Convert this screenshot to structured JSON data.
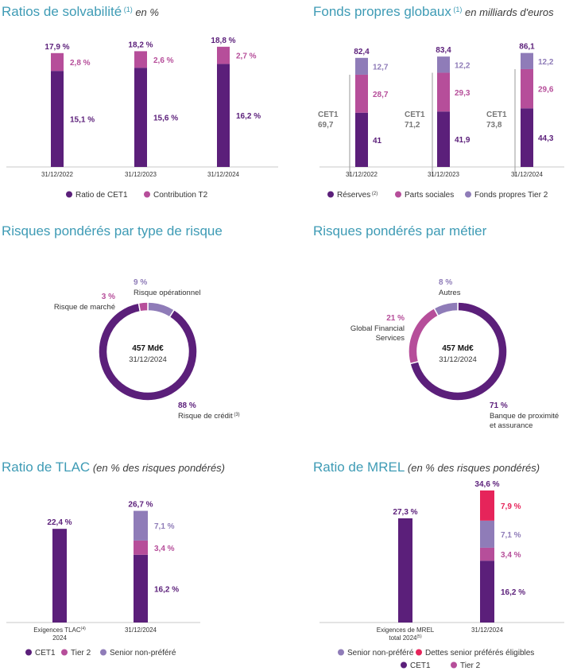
{
  "colors": {
    "dark": "#5b1f7a",
    "magenta": "#b64e9a",
    "lavender": "#8f7cb8",
    "red": "#e6245a",
    "title": "#3e9bb5"
  },
  "chart_data": [
    {
      "id": "solvency",
      "type": "bar",
      "title": "Ratios de solvabilité",
      "title_note": "(1)",
      "subtitle": "en %",
      "categories": [
        "31/12/2022",
        "31/12/2023",
        "31/12/2024"
      ],
      "series": [
        {
          "name": "Ratio de CET1",
          "values": [
            15.1,
            15.6,
            16.2
          ],
          "labels": [
            "15,1 %",
            "15,6 %",
            "16,2 %"
          ]
        },
        {
          "name": "Contribution T2",
          "values": [
            2.8,
            2.6,
            2.7
          ],
          "labels": [
            "2,8 %",
            "2,6 %",
            "2,7 %"
          ]
        }
      ],
      "totals": [
        "17,9 %",
        "18,2 %",
        "18,8 %"
      ]
    },
    {
      "id": "own_funds",
      "type": "bar",
      "title": "Fonds propres globaux",
      "title_note": "(1)",
      "subtitle": "en milliards d'euros",
      "categories": [
        "31/12/2022",
        "31/12/2023",
        "31/12/2024"
      ],
      "series": [
        {
          "name": "Réserves",
          "note": "(2)",
          "values": [
            41,
            41.9,
            44.3
          ],
          "labels": [
            "41",
            "41,9",
            "44,3"
          ]
        },
        {
          "name": "Parts sociales",
          "values": [
            28.7,
            29.3,
            29.6
          ],
          "labels": [
            "28,7",
            "29,3",
            "29,6"
          ]
        },
        {
          "name": "Fonds propres Tier 2",
          "values": [
            12.7,
            12.2,
            12.2
          ],
          "labels": [
            "12,7",
            "12,2",
            "12,2"
          ]
        }
      ],
      "totals": [
        "82,4",
        "83,4",
        "86,1"
      ],
      "cet1_label": "CET1",
      "cet1_values": [
        "69,7",
        "71,2",
        "73,8"
      ]
    },
    {
      "id": "rwa_risk",
      "type": "pie",
      "title": "Risques pondérés par type de risque",
      "center_value": "457 Md€",
      "center_date": "31/12/2024",
      "slices": [
        {
          "name": "Risque de crédit",
          "note": "(3)",
          "value": 88,
          "label": "88 %"
        },
        {
          "name": "Risque de marché",
          "value": 3,
          "label": "3 %"
        },
        {
          "name": "Risque opérationnel",
          "value": 9,
          "label": "9 %"
        }
      ]
    },
    {
      "id": "rwa_business",
      "type": "pie",
      "title": "Risques pondérés par métier",
      "center_value": "457 Md€",
      "center_date": "31/12/2024",
      "slices": [
        {
          "name_lines": [
            "Banque de proximité",
            "et assurance"
          ],
          "value": 71,
          "label": "71 %"
        },
        {
          "name_lines": [
            "Global Financial",
            "Services"
          ],
          "value": 21,
          "label": "21 %"
        },
        {
          "name_lines": [
            "Autres"
          ],
          "value": 8,
          "label": "8 %"
        }
      ]
    },
    {
      "id": "tlac",
      "type": "bar",
      "title": "Ratio de TLAC",
      "subtitle": "en % des risques pondérés",
      "categories": [
        {
          "lines": [
            "Exigences TLAC",
            "2024"
          ],
          "note": "(4)"
        },
        {
          "lines": [
            "31/12/2024"
          ]
        }
      ],
      "requirement": {
        "value": 22.4,
        "label": "22,4 %"
      },
      "series": [
        {
          "name": "CET1",
          "value": 16.2,
          "label": "16,2 %"
        },
        {
          "name": "Tier 2",
          "value": 3.4,
          "label": "3,4 %"
        },
        {
          "name": "Senior non-préféré",
          "value": 7.1,
          "label": "7,1 %"
        }
      ],
      "total": "26,7 %"
    },
    {
      "id": "mrel",
      "type": "bar",
      "title": "Ratio de MREL",
      "subtitle": "en % des risques pondérés",
      "categories": [
        {
          "lines": [
            "Exigences de MREL",
            "total 2024"
          ],
          "note": "(5)"
        },
        {
          "lines": [
            "31/12/2024"
          ]
        }
      ],
      "requirement": {
        "value": 27.3,
        "label": "27,3 %"
      },
      "series": [
        {
          "name": "CET1",
          "value": 16.2,
          "label": "16,2 %"
        },
        {
          "name": "Tier 2",
          "value": 3.4,
          "label": "3,4 %"
        },
        {
          "name": "Senior non-préféré",
          "value": 7.1,
          "label": "7,1 %"
        },
        {
          "name": "Dettes senior préférés éligibles",
          "value": 7.9,
          "label": "7,9 %"
        }
      ],
      "total": "34,6 %"
    }
  ]
}
